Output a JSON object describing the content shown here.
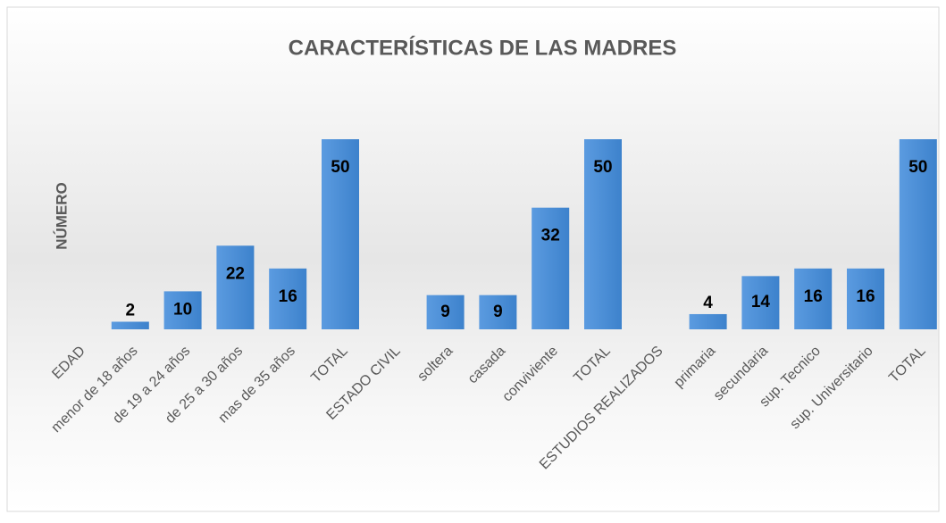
{
  "chart_data": {
    "type": "bar",
    "title": "CARACTERÍSTICAS DE LAS MADRES",
    "y_label": "NÚMERO",
    "categories": [
      "EDAD",
      "menor de 18 años",
      "de 19 a 24 años",
      "de 25 a 30 años",
      "mas de 35 años",
      "TOTAL",
      "ESTADO CIVIL",
      "soltera",
      "casada",
      "conviviente",
      "TOTAL",
      "ESTUDIOS REALIZADOS",
      "primaria",
      "secundaria",
      "sup. Tecnico",
      "sup. Universitario",
      "TOTAL"
    ],
    "values": [
      null,
      2,
      10,
      22,
      16,
      50,
      null,
      9,
      9,
      32,
      50,
      null,
      4,
      14,
      16,
      16,
      50
    ],
    "color": "#4a8fd6",
    "ylim": [
      0,
      50
    ]
  }
}
